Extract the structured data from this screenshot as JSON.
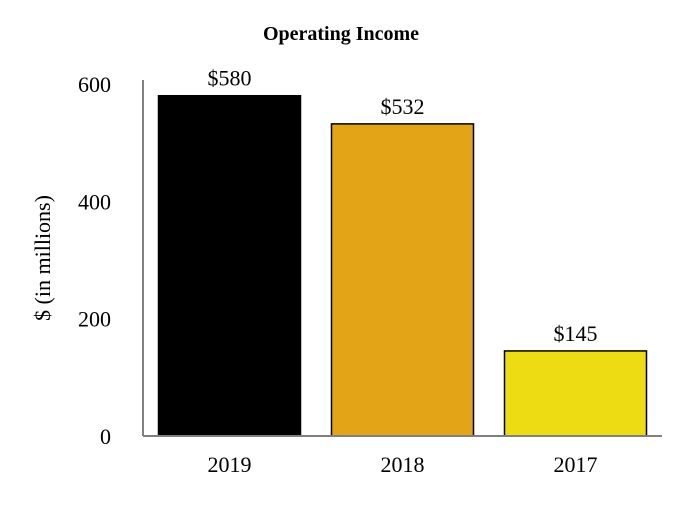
{
  "chart_data": {
    "type": "bar",
    "title": "Operating Income",
    "xlabel": "",
    "ylabel": "$ (in millions)",
    "categories": [
      "2019",
      "2018",
      "2017"
    ],
    "values": [
      580,
      532,
      145
    ],
    "data_labels": [
      "$580",
      "$532",
      "$145"
    ],
    "bar_colors": [
      "#000000",
      "#e3a417",
      "#eddc14"
    ],
    "ylim": [
      0,
      600
    ],
    "yticks": [
      0,
      200,
      400,
      600
    ],
    "ytick_labels": [
      "0",
      "200",
      "400",
      "600"
    ],
    "grid": false,
    "legend": "none"
  }
}
